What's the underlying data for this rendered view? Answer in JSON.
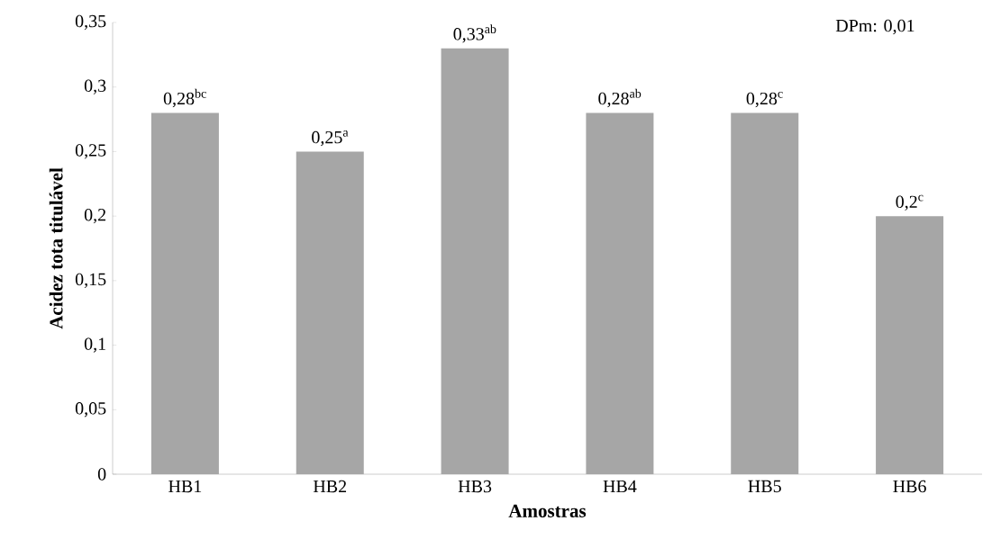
{
  "chart_data": {
    "type": "bar",
    "xlabel": "Amostras",
    "ylabel": "Acidez tota titulável",
    "categories": [
      "HB1",
      "HB2",
      "HB3",
      "HB4",
      "HB5",
      "HB6"
    ],
    "values": [
      0.28,
      0.25,
      0.33,
      0.28,
      0.28,
      0.2
    ],
    "value_labels": [
      "0,28$^{bc}$",
      "0,25$^{a}$",
      "0,33$^{ab}$",
      "0,28$^{ab}$",
      "0,28$^{c}$",
      "0,2$^{c}$"
    ],
    "color": "#a6a6a6",
    "ylim": [
      0,
      0.35
    ],
    "yticks": [
      0,
      {
        "value": 0.05,
        "label": "0,05"
      },
      {
        "value": 0.1,
        "label": "0,1"
      },
      {
        "value": 0.15,
        "label": "0,15"
      },
      {
        "value": 0.2,
        "label": "0,2"
      },
      {
        "value": 0.25,
        "label": "0,25"
      },
      {
        "value": 0.3,
        "label": "0,3"
      },
      {
        "value": 0.35,
        "label": "0,35"
      }
    ],
    "annotations": [
      "DPm: 0,01"
    ]
  }
}
